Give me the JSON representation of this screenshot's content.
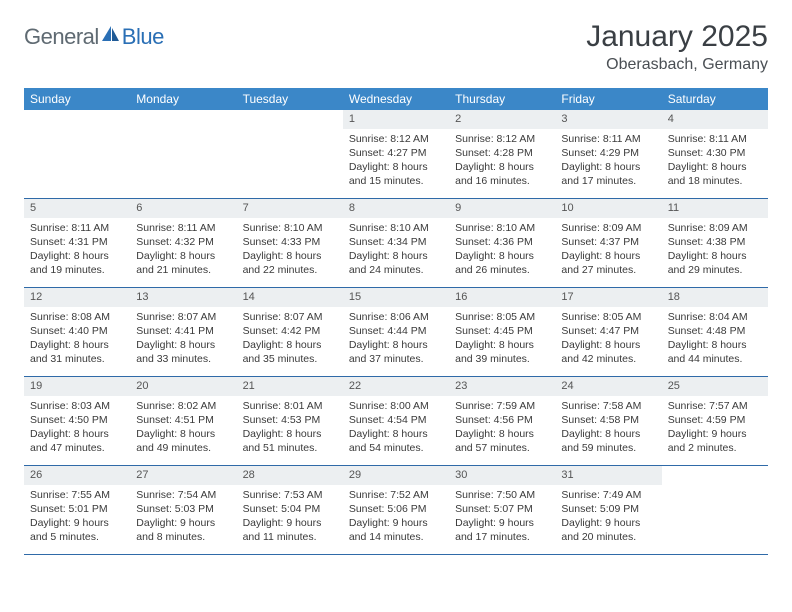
{
  "logo": {
    "text1": "General",
    "text2": "Blue"
  },
  "title": "January 2025",
  "location": "Oberasbach, Germany",
  "colors": {
    "header_bg": "#3b87c8",
    "header_text": "#ffffff",
    "daynum_bg": "#eceff1",
    "row_border": "#2f6aa8",
    "body_text": "#3a3a3a",
    "logo_gray": "#5f6a72",
    "logo_blue": "#2a6fb5"
  },
  "weekdays": [
    "Sunday",
    "Monday",
    "Tuesday",
    "Wednesday",
    "Thursday",
    "Friday",
    "Saturday"
  ],
  "weeks": [
    [
      null,
      null,
      null,
      {
        "n": "1",
        "sr": "8:12 AM",
        "ss": "4:27 PM",
        "dl": "8 hours and 15 minutes."
      },
      {
        "n": "2",
        "sr": "8:12 AM",
        "ss": "4:28 PM",
        "dl": "8 hours and 16 minutes."
      },
      {
        "n": "3",
        "sr": "8:11 AM",
        "ss": "4:29 PM",
        "dl": "8 hours and 17 minutes."
      },
      {
        "n": "4",
        "sr": "8:11 AM",
        "ss": "4:30 PM",
        "dl": "8 hours and 18 minutes."
      }
    ],
    [
      {
        "n": "5",
        "sr": "8:11 AM",
        "ss": "4:31 PM",
        "dl": "8 hours and 19 minutes."
      },
      {
        "n": "6",
        "sr": "8:11 AM",
        "ss": "4:32 PM",
        "dl": "8 hours and 21 minutes."
      },
      {
        "n": "7",
        "sr": "8:10 AM",
        "ss": "4:33 PM",
        "dl": "8 hours and 22 minutes."
      },
      {
        "n": "8",
        "sr": "8:10 AM",
        "ss": "4:34 PM",
        "dl": "8 hours and 24 minutes."
      },
      {
        "n": "9",
        "sr": "8:10 AM",
        "ss": "4:36 PM",
        "dl": "8 hours and 26 minutes."
      },
      {
        "n": "10",
        "sr": "8:09 AM",
        "ss": "4:37 PM",
        "dl": "8 hours and 27 minutes."
      },
      {
        "n": "11",
        "sr": "8:09 AM",
        "ss": "4:38 PM",
        "dl": "8 hours and 29 minutes."
      }
    ],
    [
      {
        "n": "12",
        "sr": "8:08 AM",
        "ss": "4:40 PM",
        "dl": "8 hours and 31 minutes."
      },
      {
        "n": "13",
        "sr": "8:07 AM",
        "ss": "4:41 PM",
        "dl": "8 hours and 33 minutes."
      },
      {
        "n": "14",
        "sr": "8:07 AM",
        "ss": "4:42 PM",
        "dl": "8 hours and 35 minutes."
      },
      {
        "n": "15",
        "sr": "8:06 AM",
        "ss": "4:44 PM",
        "dl": "8 hours and 37 minutes."
      },
      {
        "n": "16",
        "sr": "8:05 AM",
        "ss": "4:45 PM",
        "dl": "8 hours and 39 minutes."
      },
      {
        "n": "17",
        "sr": "8:05 AM",
        "ss": "4:47 PM",
        "dl": "8 hours and 42 minutes."
      },
      {
        "n": "18",
        "sr": "8:04 AM",
        "ss": "4:48 PM",
        "dl": "8 hours and 44 minutes."
      }
    ],
    [
      {
        "n": "19",
        "sr": "8:03 AM",
        "ss": "4:50 PM",
        "dl": "8 hours and 47 minutes."
      },
      {
        "n": "20",
        "sr": "8:02 AM",
        "ss": "4:51 PM",
        "dl": "8 hours and 49 minutes."
      },
      {
        "n": "21",
        "sr": "8:01 AM",
        "ss": "4:53 PM",
        "dl": "8 hours and 51 minutes."
      },
      {
        "n": "22",
        "sr": "8:00 AM",
        "ss": "4:54 PM",
        "dl": "8 hours and 54 minutes."
      },
      {
        "n": "23",
        "sr": "7:59 AM",
        "ss": "4:56 PM",
        "dl": "8 hours and 57 minutes."
      },
      {
        "n": "24",
        "sr": "7:58 AM",
        "ss": "4:58 PM",
        "dl": "8 hours and 59 minutes."
      },
      {
        "n": "25",
        "sr": "7:57 AM",
        "ss": "4:59 PM",
        "dl": "9 hours and 2 minutes."
      }
    ],
    [
      {
        "n": "26",
        "sr": "7:55 AM",
        "ss": "5:01 PM",
        "dl": "9 hours and 5 minutes."
      },
      {
        "n": "27",
        "sr": "7:54 AM",
        "ss": "5:03 PM",
        "dl": "9 hours and 8 minutes."
      },
      {
        "n": "28",
        "sr": "7:53 AM",
        "ss": "5:04 PM",
        "dl": "9 hours and 11 minutes."
      },
      {
        "n": "29",
        "sr": "7:52 AM",
        "ss": "5:06 PM",
        "dl": "9 hours and 14 minutes."
      },
      {
        "n": "30",
        "sr": "7:50 AM",
        "ss": "5:07 PM",
        "dl": "9 hours and 17 minutes."
      },
      {
        "n": "31",
        "sr": "7:49 AM",
        "ss": "5:09 PM",
        "dl": "9 hours and 20 minutes."
      },
      null
    ]
  ],
  "labels": {
    "sunrise": "Sunrise: ",
    "sunset": "Sunset: ",
    "daylight": "Daylight: "
  }
}
